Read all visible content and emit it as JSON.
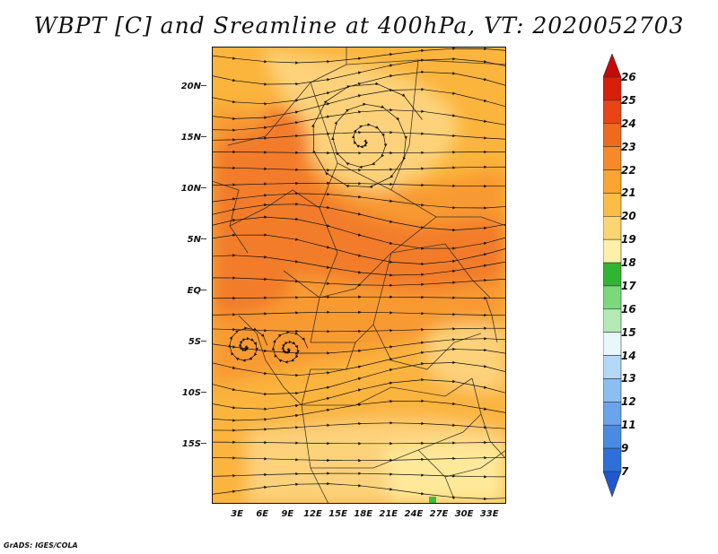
{
  "title": "WBPT [C] and Sreamline at 400hPa, VT: 2020052703",
  "credit": "GrADS: IGES/COLA",
  "map": {
    "lat_labels": [
      "20N",
      "15N",
      "10N",
      "5N",
      "EQ",
      "5S",
      "10S",
      "15S"
    ],
    "lon_labels": [
      "3E",
      "6E",
      "9E",
      "12E",
      "15E",
      "18E",
      "21E",
      "24E",
      "27E",
      "30E",
      "33E"
    ],
    "lat_range": [
      -20,
      24
    ],
    "lon_range": [
      0,
      35
    ],
    "field_colors": {
      "c18": "#3cbe3c",
      "c19": "#fee99a",
      "c20": "#fdd27a",
      "c21": "#fbb43c",
      "c22": "#f89a30",
      "c23": "#f27c2a"
    }
  },
  "colorbar": {
    "labels": [
      "26",
      "25",
      "24",
      "23",
      "22",
      "21",
      "20",
      "19",
      "18",
      "17",
      "16",
      "15",
      "14",
      "13",
      "12",
      "11",
      "9",
      "7"
    ],
    "colors": [
      "#c40a0a",
      "#d6200c",
      "#e84415",
      "#f06a1e",
      "#f68a28",
      "#f9a530",
      "#fbbd45",
      "#fcd573",
      "#fdf0a8",
      "#31b431",
      "#7bd87b",
      "#b4eab4",
      "#e8f8fa",
      "#b4d8f8",
      "#8cbef0",
      "#6aa4ea",
      "#4a8ae2",
      "#2f6fda",
      "#1e58cc"
    ]
  }
}
